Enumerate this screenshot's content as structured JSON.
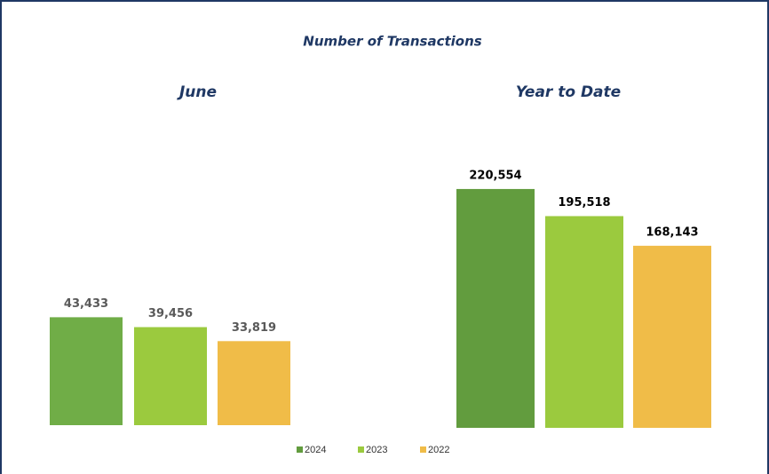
{
  "title": "Number of Transactions",
  "legend": [
    {
      "name": "2024",
      "color": "#629c3e"
    },
    {
      "name": "2023",
      "color": "#9bca3e"
    },
    {
      "name": "2022",
      "color": "#f0bc48"
    }
  ],
  "chart_data": [
    {
      "type": "bar",
      "title": "June",
      "values": [
        43433,
        39456,
        33819
      ],
      "value_labels": [
        "43,433",
        "39,456",
        "33,819"
      ],
      "colors": [
        "#70ad47",
        "#9bca3e",
        "#f0bc48"
      ],
      "ylim": [
        0,
        50000
      ]
    },
    {
      "type": "bar",
      "title": "Year to Date",
      "values": [
        220554,
        195518,
        168143
      ],
      "value_labels": [
        "220,554",
        "195,518",
        "168,143"
      ],
      "colors": [
        "#629c3e",
        "#9bca3e",
        "#f0bc48"
      ],
      "ylim": [
        0,
        250000
      ]
    }
  ]
}
